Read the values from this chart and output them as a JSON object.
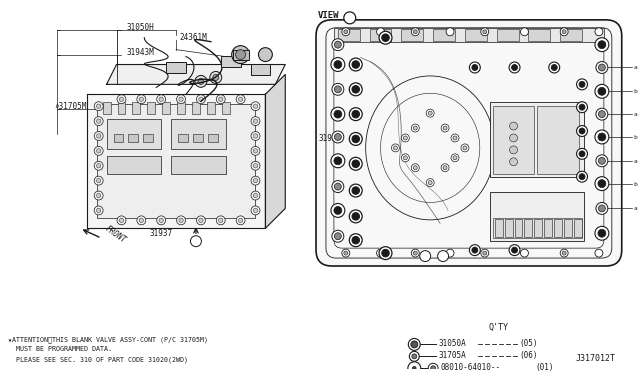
{
  "bg_color": "#ffffff",
  "line_color": "#1a1a1a",
  "fig_width": 6.4,
  "fig_height": 3.72,
  "dpi": 100,
  "attention_lines": [
    "★ATTENTION：THIS BLANK VALVE ASSY-CONT (P/C 31705M)",
    "  MUST BE PROGRAMMED DATA.",
    "  PLEASE SEE SEC. 310 OF PART CODE 31020(2WD)"
  ],
  "part_ref_code": "J317012T",
  "qty_title": "Q'TY",
  "qty_rows": [
    {
      "part": "31050A",
      "qty": "(05)"
    },
    {
      "part": "31705A",
      "qty": "(06)"
    },
    {
      "part": "08010-64010--",
      "qty": "(01)"
    }
  ]
}
